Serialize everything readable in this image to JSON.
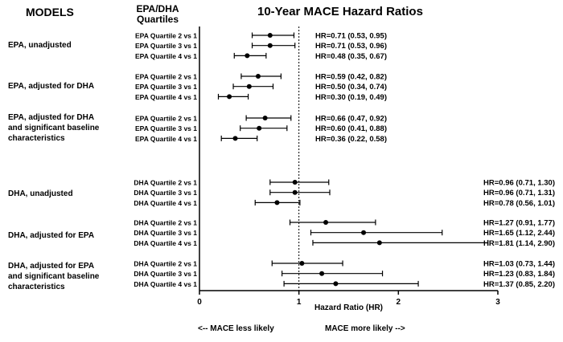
{
  "headers": {
    "models": "MODELS",
    "quartiles_line1": "EPA/DHA",
    "quartiles_line2": "Quartiles",
    "title": "10-Year MACE Hazard  Ratios"
  },
  "chart_data": {
    "type": "forest",
    "title": "10-Year MACE Hazard  Ratios",
    "xlabel": "Hazard Ratio (HR)",
    "xlim": [
      0,
      3
    ],
    "xticks": [
      "0",
      "1",
      "2",
      "3"
    ],
    "reference_line": 1,
    "groups": [
      {
        "label": "EPA, unadjusted",
        "rows": [
          {
            "label": "EPA Quartile 2 vs 1",
            "hr": 0.71,
            "lo": 0.53,
            "hi": 0.95,
            "text": "HR=0.71 (0.53, 0.95)"
          },
          {
            "label": "EPA Quartile 3 vs 1",
            "hr": 0.71,
            "lo": 0.53,
            "hi": 0.96,
            "text": "HR=0.71 (0.53, 0.96)"
          },
          {
            "label": "EPA Quartile 4 vs 1",
            "hr": 0.48,
            "lo": 0.35,
            "hi": 0.67,
            "text": "HR=0.48 (0.35, 0.67)"
          }
        ]
      },
      {
        "label": "EPA, adjusted for DHA",
        "rows": [
          {
            "label": "EPA Quartile 2 vs 1",
            "hr": 0.59,
            "lo": 0.42,
            "hi": 0.82,
            "text": "HR=0.59 (0.42, 0.82)"
          },
          {
            "label": "EPA Quartile 3 vs 1",
            "hr": 0.5,
            "lo": 0.34,
            "hi": 0.74,
            "text": "HR=0.50 (0.34, 0.74)"
          },
          {
            "label": "EPA Quartile 4 vs 1",
            "hr": 0.3,
            "lo": 0.19,
            "hi": 0.49,
            "text": "HR=0.30 (0.19, 0.49)"
          }
        ]
      },
      {
        "label": "EPA, adjusted for DHA and significant baseline characteristics",
        "rows": [
          {
            "label": "EPA Quartile 2 vs 1",
            "hr": 0.66,
            "lo": 0.47,
            "hi": 0.92,
            "text": "HR=0.66 (0.47, 0.92)"
          },
          {
            "label": "EPA Quartile 3 vs 1",
            "hr": 0.6,
            "lo": 0.41,
            "hi": 0.88,
            "text": "HR=0.60 (0.41, 0.88)"
          },
          {
            "label": "EPA Quartile 4 vs 1",
            "hr": 0.36,
            "lo": 0.22,
            "hi": 0.58,
            "text": "HR=0.36 (0.22, 0.58)"
          }
        ]
      },
      {
        "label": "DHA, unadjusted",
        "rows": [
          {
            "label": "DHA Quartile 2 vs 1",
            "hr": 0.96,
            "lo": 0.71,
            "hi": 1.3,
            "text": "HR=0.96 (0.71, 1.30)"
          },
          {
            "label": "DHA Quartile 3 vs 1",
            "hr": 0.96,
            "lo": 0.71,
            "hi": 1.31,
            "text": "HR=0.96 (0.71, 1.31)"
          },
          {
            "label": "DHA Quartile 4 vs 1",
            "hr": 0.78,
            "lo": 0.56,
            "hi": 1.01,
            "text": "HR=0.78 (0.56, 1.01)"
          }
        ]
      },
      {
        "label": "DHA, adjusted for EPA",
        "rows": [
          {
            "label": "DHA Quartile 2 vs 1",
            "hr": 1.27,
            "lo": 0.91,
            "hi": 1.77,
            "text": "HR=1.27 (0.91, 1.77)"
          },
          {
            "label": "DHA Quartile 3 vs 1",
            "hr": 1.65,
            "lo": 1.12,
            "hi": 2.44,
            "text": "HR=1.65 (1.12, 2.44)"
          },
          {
            "label": "DHA Quartile 4 vs 1",
            "hr": 1.81,
            "lo": 1.14,
            "hi": 2.9,
            "text": "HR=1.81 (1.14, 2.90)"
          }
        ]
      },
      {
        "label": "DHA, adjusted for EPA and significant baseline characteristics",
        "rows": [
          {
            "label": "DHA Quartile 2 vs 1",
            "hr": 1.03,
            "lo": 0.73,
            "hi": 1.44,
            "text": "HR=1.03 (0.73, 1.44)"
          },
          {
            "label": "DHA Quartile 3 vs 1",
            "hr": 1.23,
            "lo": 0.83,
            "hi": 1.84,
            "text": "HR=1.23 (0.83, 1.84)"
          },
          {
            "label": "DHA Quartile 4 vs 1",
            "hr": 1.37,
            "lo": 0.85,
            "hi": 2.2,
            "text": "HR=1.37 (0.85, 2.20)"
          }
        ]
      }
    ]
  },
  "models": {
    "m1": "EPA, unadjusted",
    "m2": "EPA, adjusted for DHA",
    "m3_line1": "EPA, adjusted for DHA",
    "m3_line2": "and significant baseline",
    "m3_line3": "characteristics",
    "m4": "DHA, unadjusted",
    "m5": "DHA, adjusted for EPA",
    "m6_line1": "DHA, adjusted for EPA",
    "m6_line2": "and significant baseline",
    "m6_line3": "characteristics"
  },
  "footer": {
    "less_likely": "<-- MACE less likely",
    "more_likely": "MACE more likely -->"
  }
}
